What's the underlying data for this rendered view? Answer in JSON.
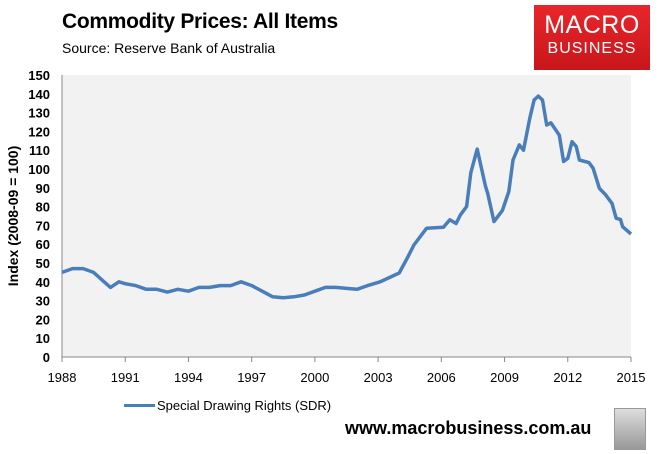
{
  "header": {
    "title": "Commodity Prices: All Items",
    "source": "Source: Reserve Bank of Australia"
  },
  "logo": {
    "line1": "MACRO",
    "line2": "BUSINESS",
    "color": "#d91e23"
  },
  "footer": {
    "url": "www.macrobusiness.com.au",
    "icon": "wolf-icon"
  },
  "chart_data": {
    "type": "line",
    "title": "Commodity Prices: All Items",
    "xlabel": "",
    "ylabel": "Index (2008-09 = 100)",
    "xlim": [
      1988,
      2015
    ],
    "ylim": [
      0,
      150
    ],
    "xticks": [
      "1988",
      "1991",
      "1994",
      "1997",
      "2000",
      "2003",
      "2006",
      "2009",
      "2012",
      "2015"
    ],
    "yticks": [
      "0",
      "10",
      "20",
      "30",
      "40",
      "50",
      "60",
      "70",
      "80",
      "90",
      "100",
      "110",
      "120",
      "130",
      "140",
      "150"
    ],
    "grid": false,
    "background": "#f2f2f2",
    "legend": "bottom-left",
    "series": [
      {
        "name": "Special Drawing Rights (SDR)",
        "color": "#4a7ebb",
        "x": [
          1988,
          1988.5,
          1989,
          1989.5,
          1990,
          1990.3,
          1990.7,
          1991,
          1991.5,
          1992,
          1992.5,
          1993,
          1993.5,
          1994,
          1994.5,
          1995,
          1995.5,
          1996,
          1996.5,
          1997,
          1997.5,
          1998,
          1998.5,
          1999,
          1999.5,
          2000,
          2000.5,
          2001,
          2001.5,
          2002,
          2002.5,
          2003.1,
          2004.0,
          2004.4,
          2004.7,
          2005.3,
          2006.1,
          2006.4,
          2006.7,
          2006.9,
          2007.2,
          2007.4,
          2007.7,
          2008.1,
          2008.2,
          2008.5,
          2008.9,
          2009.2,
          2009.4,
          2009.7,
          2009.9,
          2010.2,
          2010.4,
          2010.6,
          2010.8,
          2011.0,
          2011.2,
          2011.6,
          2011.8,
          2012.0,
          2012.2,
          2012.4,
          2012.55,
          2013.0,
          2013.2,
          2013.5,
          2013.8,
          2014.1,
          2014.3,
          2014.5,
          2014.6,
          2015.0
        ],
        "values": [
          45,
          47,
          47,
          45,
          40,
          37,
          40,
          39,
          38,
          36,
          36,
          34.5,
          36,
          35,
          37,
          37,
          38,
          38,
          40,
          38,
          35,
          32,
          31.5,
          32,
          33,
          35,
          37,
          37,
          36.5,
          36,
          38,
          40,
          44.7,
          53,
          59.6,
          68.5,
          69,
          73,
          71,
          75.5,
          80,
          98,
          110.6,
          90.6,
          87,
          72,
          78,
          88,
          104.8,
          112.8,
          110,
          127,
          136.7,
          138.8,
          136.7,
          123.4,
          124.6,
          118,
          104,
          105.7,
          114.5,
          112,
          104.8,
          103.4,
          100.4,
          89.7,
          86.2,
          81.7,
          73.8,
          73.2,
          69.3,
          65.4
        ]
      }
    ]
  }
}
